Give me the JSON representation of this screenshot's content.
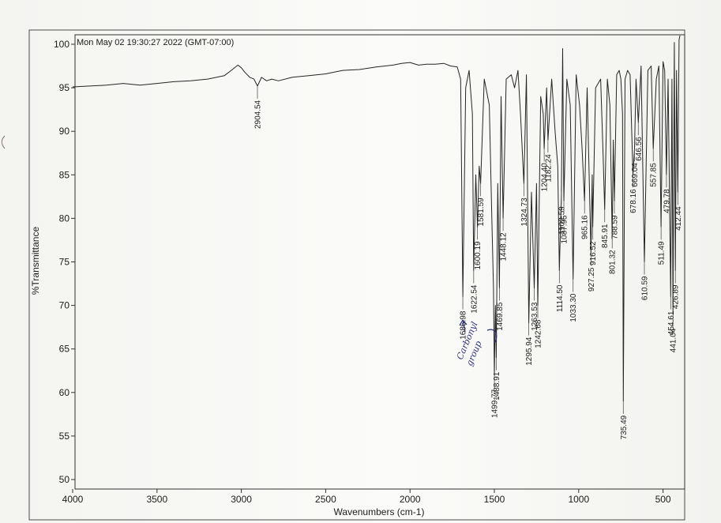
{
  "header": {
    "timestamp": "Mon May 02 19:30:27 2022 (GMT-07:00)"
  },
  "chart_data": {
    "type": "line",
    "title": "",
    "xlabel": "Wavenumbers (cm-1)",
    "ylabel": "%Transmittance",
    "xlim": [
      4000,
      400
    ],
    "ylim": [
      49,
      101
    ],
    "x_reversed": true,
    "grid": false,
    "x_ticks": [
      4000,
      3500,
      3000,
      2500,
      2000,
      1500,
      1000,
      500
    ],
    "y_ticks": [
      50,
      55,
      60,
      65,
      70,
      75,
      80,
      85,
      90,
      95,
      100
    ],
    "series": [
      {
        "x": [
          4000,
          3900,
          3800,
          3700,
          3600,
          3500,
          3400,
          3300,
          3200,
          3100,
          3060,
          3020,
          3000,
          2980,
          2950,
          2925,
          2904.54,
          2880,
          2850,
          2820,
          2780,
          2700,
          2600,
          2500,
          2400,
          2300,
          2200,
          2100,
          2050,
          2000,
          1950,
          1900,
          1850,
          1800,
          1760,
          1720,
          1700,
          1686.98,
          1670,
          1650,
          1630,
          1622.54,
          1610,
          1600.19,
          1590,
          1581.59,
          1560,
          1530,
          1515,
          1505,
          1499.77,
          1494,
          1488.91,
          1480,
          1469.85,
          1460,
          1448.12,
          1430,
          1400,
          1380,
          1360,
          1345,
          1324.73,
          1310,
          1295.94,
          1280,
          1263.53,
          1250,
          1242.68,
          1225,
          1210,
          1204.4,
          1190,
          1182.24,
          1160,
          1140,
          1124,
          1114.5,
          1102.59,
          1095,
          1087.95,
          1070,
          1050,
          1033.3,
          1015,
          995,
          980,
          965.16,
          950,
          927.25,
          920,
          916.52,
          900,
          870,
          855,
          845.91,
          830,
          815,
          801.32,
          795,
          788.59,
          775,
          760,
          750,
          740,
          735.49,
          725,
          710,
          695,
          678.16,
          669.04,
          660,
          646.56,
          630,
          610.59,
          590,
          570,
          557.85,
          540,
          525,
          511.49,
          500,
          490,
          479.78,
          470,
          454.61,
          447,
          441.04,
          433,
          426.89,
          420,
          412.44,
          405,
          400
        ],
        "y": [
          95.1,
          95.2,
          95.3,
          95.5,
          95.3,
          95.5,
          95.7,
          95.8,
          96.0,
          96.4,
          97.0,
          97.6,
          97.3,
          96.8,
          96.2,
          96.0,
          95.2,
          96.2,
          95.8,
          96.0,
          95.8,
          96.2,
          96.4,
          96.6,
          97.0,
          97.1,
          97.4,
          97.6,
          97.8,
          97.9,
          97.6,
          97.7,
          97.7,
          97.8,
          97.5,
          97.4,
          96.0,
          71.0,
          95.0,
          97.0,
          92.0,
          74.0,
          85.0,
          79.0,
          86.0,
          84.0,
          96.0,
          93.0,
          80.0,
          72.0,
          62.0,
          70.0,
          64.0,
          84.0,
          72.0,
          94.0,
          80.0,
          96.0,
          96.5,
          95.0,
          97.0,
          92.0,
          84.0,
          96.5,
          68.0,
          83.0,
          72.0,
          84.0,
          70.0,
          94.0,
          92.0,
          88.0,
          95.0,
          89.0,
          96.0,
          90.0,
          86.0,
          74.0,
          83.0,
          99.5,
          82.0,
          96.0,
          93.0,
          73.0,
          96.5,
          93.0,
          88.0,
          82.0,
          95.0,
          76.0,
          85.0,
          79.0,
          95.0,
          96.0,
          87.0,
          81.0,
          96.0,
          93.0,
          78.0,
          89.0,
          82.0,
          96.5,
          97.0,
          96.0,
          92.0,
          59.0,
          96.0,
          97.0,
          96.5,
          85.0,
          88.0,
          96.0,
          91.0,
          97.5,
          75.0,
          97.0,
          97.5,
          88.0,
          96.0,
          97.5,
          79.0,
          98.0,
          97.0,
          85.0,
          96.0,
          71.0,
          96.0,
          69.0,
          100.2,
          74.0,
          97.0,
          83.0,
          100.5,
          101.0
        ]
      }
    ],
    "peak_labels": [
      {
        "x": 2904.54,
        "text": "2904.54"
      },
      {
        "x": 1686.98,
        "text": "1686.98"
      },
      {
        "x": 1622.54,
        "text": "1622.54"
      },
      {
        "x": 1600.19,
        "text": "1600.19"
      },
      {
        "x": 1581.59,
        "text": "1581.59"
      },
      {
        "x": 1499.77,
        "text": "1499.77"
      },
      {
        "x": 1488.91,
        "text": "1488.91"
      },
      {
        "x": 1469.85,
        "text": "1469.85"
      },
      {
        "x": 1448.12,
        "text": "1448.12"
      },
      {
        "x": 1324.73,
        "text": "1324.73"
      },
      {
        "x": 1295.94,
        "text": "1295.94"
      },
      {
        "x": 1263.53,
        "text": "1263.53"
      },
      {
        "x": 1242.68,
        "text": "1242.68"
      },
      {
        "x": 1204.4,
        "text": "1204.40"
      },
      {
        "x": 1182.24,
        "text": "1182.24"
      },
      {
        "x": 1114.5,
        "text": "1114.50"
      },
      {
        "x": 1102.59,
        "text": "1102.59"
      },
      {
        "x": 1087.95,
        "text": "1087.95"
      },
      {
        "x": 1033.3,
        "text": "1033.30"
      },
      {
        "x": 965.16,
        "text": "965.16"
      },
      {
        "x": 927.25,
        "text": "927.25"
      },
      {
        "x": 916.52,
        "text": "916.52"
      },
      {
        "x": 845.91,
        "text": "845.91"
      },
      {
        "x": 801.32,
        "text": "801.32"
      },
      {
        "x": 788.59,
        "text": "788.59"
      },
      {
        "x": 735.49,
        "text": "735.49"
      },
      {
        "x": 678.16,
        "text": "678.16"
      },
      {
        "x": 669.04,
        "text": "669.04"
      },
      {
        "x": 646.56,
        "text": "646.56"
      },
      {
        "x": 610.59,
        "text": "610.59"
      },
      {
        "x": 557.85,
        "text": "557.85"
      },
      {
        "x": 511.49,
        "text": "511.49"
      },
      {
        "x": 479.78,
        "text": "479.78"
      },
      {
        "x": 454.61,
        "text": "454.61"
      },
      {
        "x": 441.04,
        "text": "441.04"
      },
      {
        "x": 426.89,
        "text": "426.89"
      },
      {
        "x": 412.44,
        "text": "412.44"
      }
    ],
    "annotations": [
      {
        "text": "Carbonyl",
        "kind": "handwritten"
      },
      {
        "text": "group",
        "kind": "handwritten"
      }
    ]
  }
}
